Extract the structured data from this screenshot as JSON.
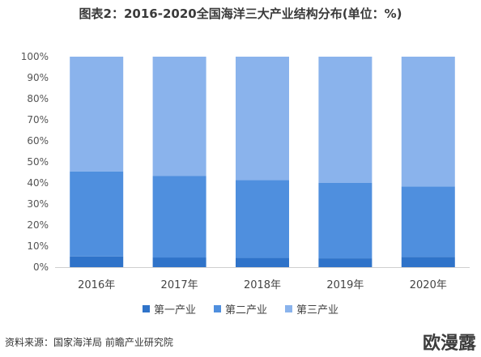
{
  "title": "图表2：2016-2020全国海洋三大产业结构分布(单位：%)",
  "source": "资料来源：国家海洋局 前瞻产业研究院",
  "corner_text": "欧漫露",
  "colors": {
    "primary": "#2f73c9",
    "secondary": "#4f8fde",
    "tertiary": "#8ab3ec"
  },
  "chart_data": {
    "type": "bar",
    "stacked": true,
    "categories": [
      "2016年",
      "2017年",
      "2018年",
      "2019年",
      "2020年"
    ],
    "series": [
      {
        "name": "第一产业",
        "values": [
          5.1,
          4.6,
          4.4,
          4.2,
          4.9
        ]
      },
      {
        "name": "第二产业",
        "values": [
          40.4,
          38.8,
          37.0,
          35.8,
          33.4
        ]
      },
      {
        "name": "第三产业",
        "values": [
          54.5,
          56.6,
          58.6,
          60.0,
          61.7
        ]
      }
    ],
    "yticks": [
      "0%",
      "10%",
      "20%",
      "30%",
      "40%",
      "50%",
      "60%",
      "70%",
      "80%",
      "90%",
      "100%"
    ],
    "ylim": [
      0,
      100
    ],
    "legend_position": "bottom"
  }
}
